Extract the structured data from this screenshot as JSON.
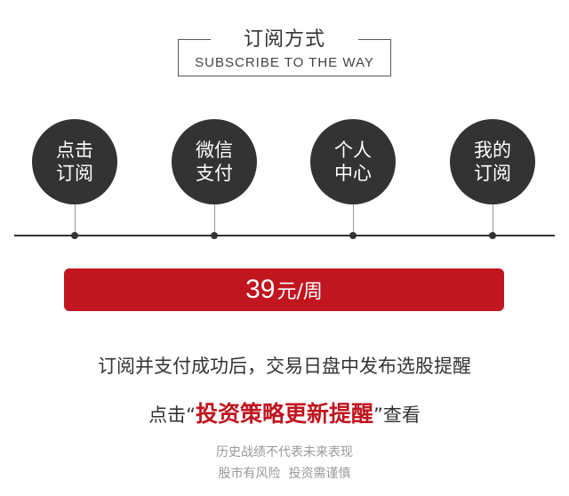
{
  "header": {
    "title": "订阅方式",
    "subtitle": "SUBSCRIBE TO THE WAY"
  },
  "steps": [
    {
      "line1": "点击",
      "line2": "订阅"
    },
    {
      "line1": "微信",
      "line2": "支付"
    },
    {
      "line1": "个人",
      "line2": "中心"
    },
    {
      "line1": "我的",
      "line2": "订阅"
    }
  ],
  "price": {
    "amount": "39",
    "unit": "元/周"
  },
  "notice": {
    "line1": "订阅并支付成功后，交易日盘中发布选股提醒",
    "prefix": "点击“",
    "highlight": "投资策略更新提醒",
    "suffix": "”查看"
  },
  "disclaimer": {
    "line1": "历史战绩不代表未来表现",
    "line2": "股市有风险  投资需谨慎"
  },
  "colors": {
    "accent_red": "#c1151f",
    "circle_bg": "#333333"
  }
}
